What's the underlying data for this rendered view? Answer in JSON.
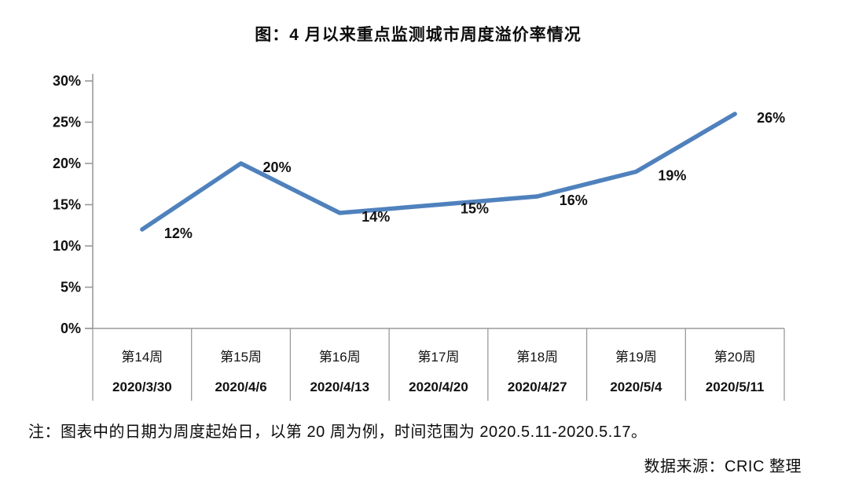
{
  "title": "图：4 月以来重点监测城市周度溢价率情况",
  "chart_data": {
    "type": "line",
    "title": "图：4 月以来重点监测城市周度溢价率情况",
    "categories": [
      "第14周",
      "第15周",
      "第16周",
      "第17周",
      "第18周",
      "第19周",
      "第20周"
    ],
    "category_dates": [
      "2020/3/30",
      "2020/4/6",
      "2020/4/13",
      "2020/4/20",
      "2020/4/27",
      "2020/5/4",
      "2020/5/11"
    ],
    "values": [
      12,
      20,
      14,
      15,
      16,
      19,
      26
    ],
    "data_labels": [
      "12%",
      "20%",
      "14%",
      "15%",
      "16%",
      "19%",
      "26%"
    ],
    "xlabel": "",
    "ylabel": "",
    "ylim": [
      0,
      30
    ],
    "ytick_step": 5,
    "ytick_labels": [
      "0%",
      "5%",
      "10%",
      "15%",
      "20%",
      "25%",
      "30%"
    ],
    "grid": false,
    "legend": "none",
    "line_color": "#4f81bd",
    "axis_color": "#9a9a9a"
  },
  "note": "注：图表中的日期为周度起始日，以第 20 周为例，时间范围为 2020.5.11-2020.5.17。",
  "source": "数据来源：CRIC 整理"
}
